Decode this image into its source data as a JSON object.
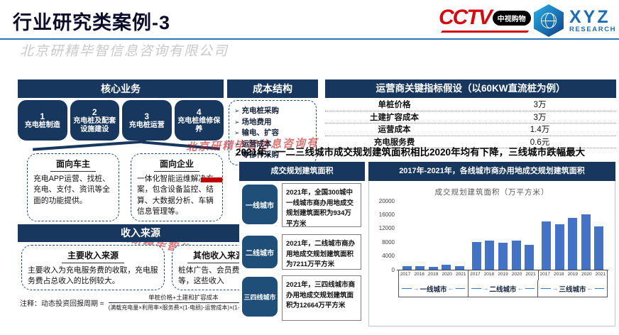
{
  "header": {
    "title": "行业研究类案例-3",
    "watermark": "北京研精毕智信息咨询有限公司",
    "logos": {
      "cctv_text": "CCTV",
      "cctv_badge": "中视购物",
      "xyz_name": "XYZ",
      "xyz_sub": "RESEARCH"
    }
  },
  "icons": {
    "right_arrow": "→",
    "left_arrow": "←"
  },
  "core_business": {
    "title": "核心业务",
    "items": [
      {
        "num": "1",
        "label": "充电桩制造"
      },
      {
        "num": "2",
        "label": "充电桩及配套设施建设"
      },
      {
        "num": "3",
        "label": "充电桩运营"
      },
      {
        "num": "4",
        "label": "充电桩维修保养"
      }
    ]
  },
  "audience": [
    {
      "title": "面向车主",
      "body": "充电APP运营、找桩、充电、支付、资讯等全面的功能提供。"
    },
    {
      "title": "面向企业",
      "body": "一体化智能运维解决方案，包含设备监控、结算、大数据分析、车辆信息管理等。"
    }
  ],
  "revenue": {
    "title": "收入来源",
    "boxes": [
      {
        "title": "主要收入来源",
        "body": "主要收入为充电服务费的收取，充电服务费占总收入的比例较大。"
      },
      {
        "title": "其他收入来源",
        "body": "桩体广告、会员费服务等，这些收入"
      }
    ],
    "note_label": "注释：动态投资回报周期 =",
    "formula_numerator": "单桩价格+土建和扩容成本",
    "formula_denominator": "(满载充电量×利用率×服务费×(1-电损)-运营成本)×(1-折现率)"
  },
  "cost_structure": {
    "title": "成本结构",
    "bullet_icon": "➢",
    "items": [
      "充电桩采购",
      "场地费用",
      "输电、扩容",
      "运营成本",
      "零部件采购"
    ]
  },
  "kpi_table": {
    "title": "运营商关键指标假设（以60KW直流桩为例）",
    "rows": [
      {
        "label": "单桩价格",
        "value": "3万"
      },
      {
        "label": "土建扩容成本",
        "value": "3万"
      },
      {
        "label": "运营成本",
        "value": "1.4万"
      },
      {
        "label": "充电服务费",
        "value": "0.6元"
      }
    ]
  },
  "headline": "2021年，一二三线城市成交规划建筑面积相比2020年均有下降，三线城市跌幅最大",
  "city_panel": {
    "title": "成交规划建筑面积",
    "rows": [
      {
        "label": "一线城市",
        "text": "2021年，全国300城中一线城市商办用地成交规划建筑面积为934万平方米"
      },
      {
        "label": "二线城市",
        "text": "2021年，二线城市商办用地成交规划建筑面积为7211万平方米"
      },
      {
        "label": "三四线城市",
        "text": "2021年，三四线城市商办用地成交规划建筑面积为12664万平方米"
      }
    ]
  },
  "chart_data": {
    "type": "bar",
    "panel_title": "2017年-2021年，各线城市商办用地成交规划建筑面积",
    "title": "成交规划建筑面积（万平方米）",
    "x": [
      "2017",
      "2018",
      "2019",
      "2020",
      "2021"
    ],
    "series": [
      {
        "name": "一线城市",
        "values": [
          1030,
          1030,
          820,
          1370,
          934
        ]
      },
      {
        "name": "二线城市",
        "values": [
          8000,
          8400,
          7900,
          8500,
          7211
        ]
      },
      {
        "name": "三线城市",
        "values": [
          14000,
          13200,
          15100,
          16000,
          12664
        ]
      }
    ],
    "ylim": [
      0,
      20000
    ],
    "yticks": [
      0,
      4000,
      8000,
      12000,
      16000,
      20000
    ],
    "ylabel": "成交规划建筑面积（万平方米）",
    "bar_color": "#4472c4",
    "grid": false,
    "legend_position": "none"
  },
  "colors": {
    "navy": "#17375e",
    "pill_navy": "#1f4e79",
    "bar_blue": "#4472c4",
    "accent_red": "#c00000",
    "rule_blue": "#2e75b6"
  }
}
